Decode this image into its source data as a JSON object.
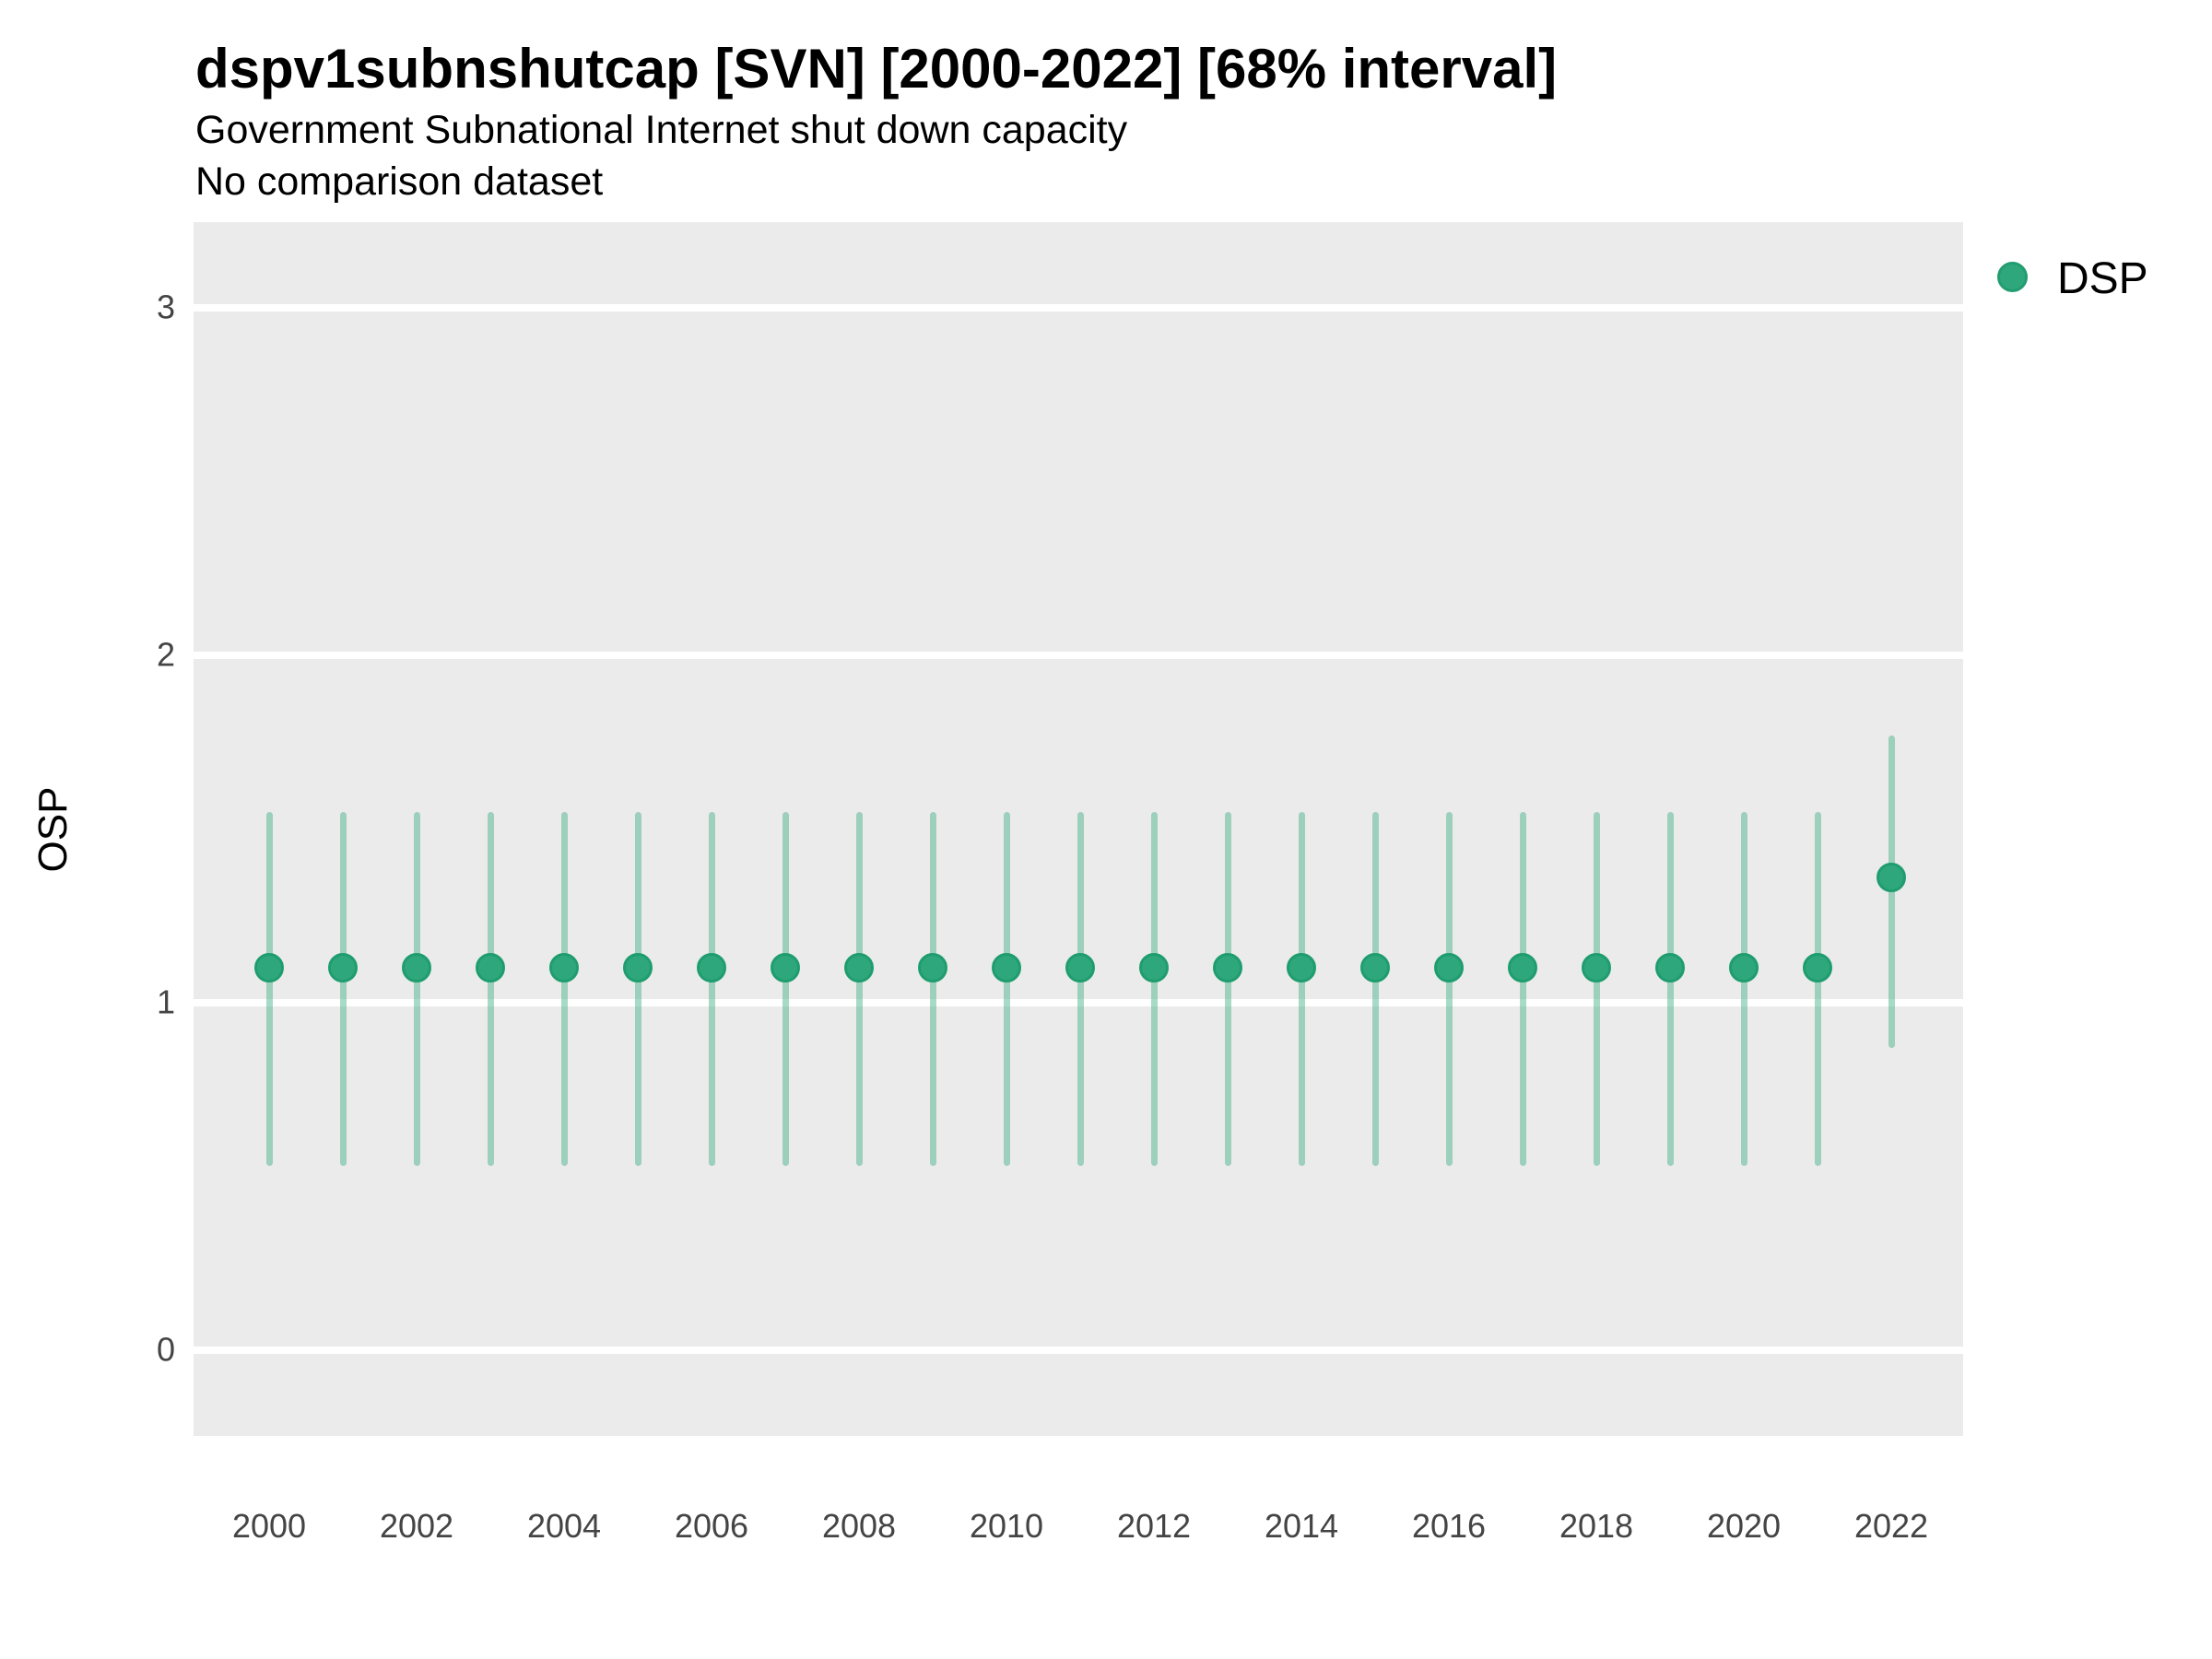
{
  "header": {
    "title": "dspv1subnshutcap [SVN] [2000-2022] [68% interval]",
    "subtitle1": "Government Subnational Internet shut down capacity",
    "subtitle2": "No comparison dataset"
  },
  "legend": {
    "position": "right-top",
    "items": [
      {
        "label": "DSP",
        "color": "#2EA77C",
        "marker": "circle-icon"
      }
    ]
  },
  "colors": {
    "panel_background": "#EBEBEB",
    "gridline": "#FFFFFF",
    "point_fill": "#2EA77C",
    "point_stroke": "#1F9D6E",
    "interval_bar": "rgba(60,172,130,0.45)",
    "tick_text": "#444444",
    "title_text": "#000000"
  },
  "chart_data": {
    "type": "scatter",
    "subtype": "pointrange",
    "title": "dspv1subnshutcap [SVN] [2000-2022] [68% interval]",
    "xlabel": "",
    "ylabel": "OSP",
    "interval": "68%",
    "ylim": [
      -0.25,
      3.25
    ],
    "yticks": [
      0,
      1,
      2,
      3
    ],
    "xticks": [
      2000,
      2002,
      2004,
      2006,
      2008,
      2010,
      2012,
      2014,
      2016,
      2018,
      2020,
      2022
    ],
    "grid": "major horizontal white lines on gray panel",
    "legend_position": "right-top",
    "series": [
      {
        "name": "DSP",
        "points": [
          {
            "year": 2000,
            "estimate": 1.1,
            "low": 0.53,
            "high": 1.55
          },
          {
            "year": 2001,
            "estimate": 1.1,
            "low": 0.53,
            "high": 1.55
          },
          {
            "year": 2002,
            "estimate": 1.1,
            "low": 0.53,
            "high": 1.55
          },
          {
            "year": 2003,
            "estimate": 1.1,
            "low": 0.53,
            "high": 1.55
          },
          {
            "year": 2004,
            "estimate": 1.1,
            "low": 0.53,
            "high": 1.55
          },
          {
            "year": 2005,
            "estimate": 1.1,
            "low": 0.53,
            "high": 1.55
          },
          {
            "year": 2006,
            "estimate": 1.1,
            "low": 0.53,
            "high": 1.55
          },
          {
            "year": 2007,
            "estimate": 1.1,
            "low": 0.53,
            "high": 1.55
          },
          {
            "year": 2008,
            "estimate": 1.1,
            "low": 0.53,
            "high": 1.55
          },
          {
            "year": 2009,
            "estimate": 1.1,
            "low": 0.53,
            "high": 1.55
          },
          {
            "year": 2010,
            "estimate": 1.1,
            "low": 0.53,
            "high": 1.55
          },
          {
            "year": 2011,
            "estimate": 1.1,
            "low": 0.53,
            "high": 1.55
          },
          {
            "year": 2012,
            "estimate": 1.1,
            "low": 0.53,
            "high": 1.55
          },
          {
            "year": 2013,
            "estimate": 1.1,
            "low": 0.53,
            "high": 1.55
          },
          {
            "year": 2014,
            "estimate": 1.1,
            "low": 0.53,
            "high": 1.55
          },
          {
            "year": 2015,
            "estimate": 1.1,
            "low": 0.53,
            "high": 1.55
          },
          {
            "year": 2016,
            "estimate": 1.1,
            "low": 0.53,
            "high": 1.55
          },
          {
            "year": 2017,
            "estimate": 1.1,
            "low": 0.53,
            "high": 1.55
          },
          {
            "year": 2018,
            "estimate": 1.1,
            "low": 0.53,
            "high": 1.55
          },
          {
            "year": 2019,
            "estimate": 1.1,
            "low": 0.53,
            "high": 1.55
          },
          {
            "year": 2020,
            "estimate": 1.1,
            "low": 0.53,
            "high": 1.55
          },
          {
            "year": 2021,
            "estimate": 1.1,
            "low": 0.53,
            "high": 1.55
          },
          {
            "year": 2022,
            "estimate": 1.36,
            "low": 0.87,
            "high": 1.77
          }
        ]
      }
    ]
  }
}
